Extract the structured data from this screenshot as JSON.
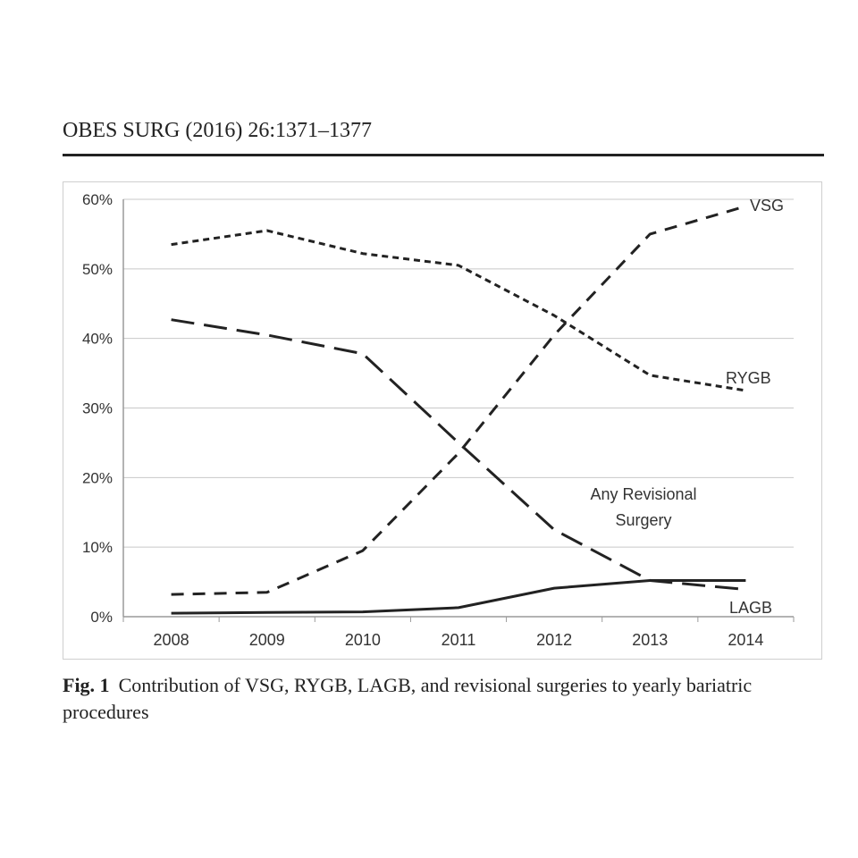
{
  "header": {
    "journal": "OBES SURG (2016) 26:1371–1377"
  },
  "caption": {
    "label": "Fig. 1",
    "text": "Contribution of VSG, RYGB, LAGB, and revisional surgeries to yearly bariatric procedures"
  },
  "chart_data": {
    "type": "line",
    "x": [
      2008,
      2009,
      2010,
      2011,
      2012,
      2013,
      2014
    ],
    "xticks": [
      "2008",
      "2009",
      "2010",
      "2011",
      "2012",
      "2013",
      "2014"
    ],
    "yticks": [
      "0%",
      "10%",
      "20%",
      "30%",
      "40%",
      "50%",
      "60%"
    ],
    "ylim": [
      0,
      60
    ],
    "grid": true,
    "series": [
      {
        "name": "VSG",
        "values": [
          3.2,
          3.5,
          9.5,
          23.5,
          40.5,
          55,
          59
        ],
        "style": "dashed-medium",
        "color": "#222222"
      },
      {
        "name": "RYGB",
        "values": [
          53.5,
          55.5,
          52.2,
          50.5,
          43.3,
          34.7,
          32.5
        ],
        "style": "dashed-short",
        "color": "#222222"
      },
      {
        "name": "LAGB",
        "values": [
          42.7,
          40.5,
          37.8,
          25,
          12.5,
          5.2,
          3.9
        ],
        "style": "dashed-long",
        "color": "#222222"
      },
      {
        "name": "Any Revisional\nSurgery",
        "values": [
          0.5,
          0.6,
          0.7,
          1.3,
          4.1,
          5.2,
          5.2
        ],
        "style": "solid",
        "color": "#222222"
      }
    ],
    "annotations": {
      "vsg": "VSG",
      "rygb": "RYGB",
      "lagb": "LAGB",
      "revisional_line1": "Any Revisional",
      "revisional_line2": "Surgery"
    }
  }
}
